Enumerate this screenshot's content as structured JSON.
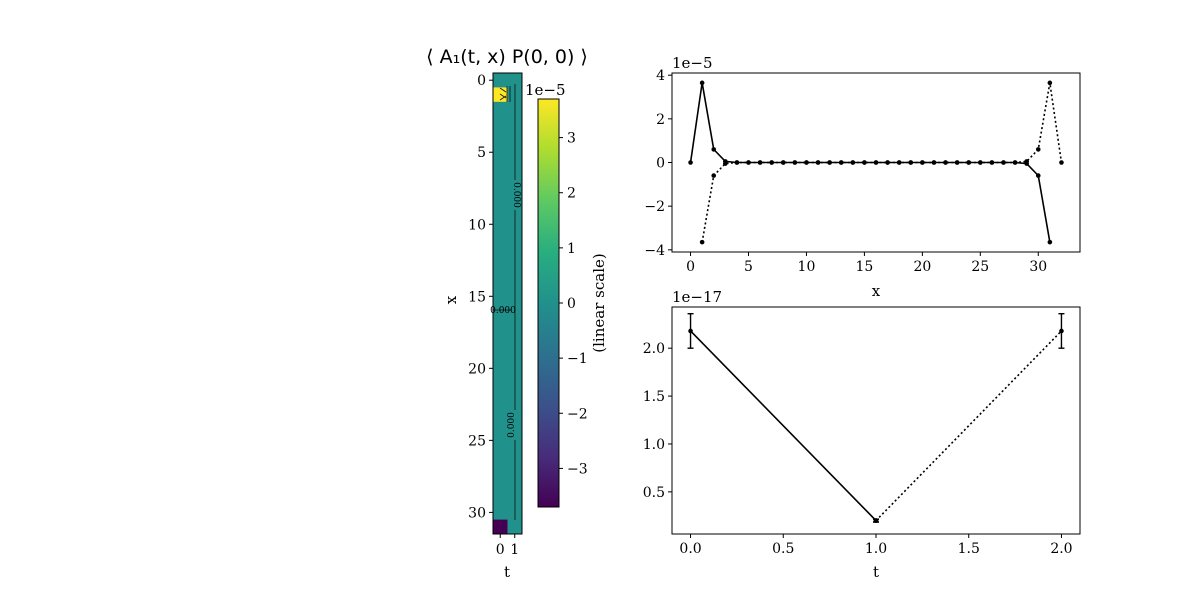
{
  "figure": {
    "heatmap": {
      "title": "⟨ A₁(t, x) P(0, 0) ⟩",
      "xlabel": "t",
      "ylabel": "x",
      "x_ticks": [
        "0",
        "1"
      ],
      "y_ticks": [
        "0",
        "5",
        "10",
        "15",
        "20",
        "25",
        "30"
      ],
      "contour_labels": [
        "0.000",
        "0.000",
        "0.000"
      ]
    },
    "colorbar": {
      "label": "(linear scale)",
      "exponent": "1e−5",
      "ticks": [
        "3",
        "2",
        "1",
        "0",
        "−1",
        "−2",
        "−3"
      ],
      "colormap": "viridis"
    },
    "top_panel": {
      "xlabel": "x",
      "exponent": "1e−5",
      "x_ticks": [
        "0",
        "5",
        "10",
        "15",
        "20",
        "25",
        "30"
      ],
      "y_ticks": [
        "4",
        "2",
        "0",
        "−2",
        "−4"
      ]
    },
    "bottom_panel": {
      "xlabel": "t",
      "exponent": "1e−17",
      "x_ticks": [
        "0.0",
        "0.5",
        "1.0",
        "1.5",
        "2.0"
      ],
      "y_ticks": [
        "2.0",
        "1.5",
        "1.0",
        "0.5"
      ]
    }
  },
  "chart_data": [
    {
      "type": "heatmap",
      "title": "⟨ A₁(t, x) P(0, 0) ⟩",
      "xlabel": "t",
      "ylabel": "x",
      "x": [
        0,
        1
      ],
      "y_range": [
        0,
        31
      ],
      "color_range": [
        -3.7e-05,
        3.7e-05
      ],
      "colormap": "viridis",
      "notable_values": [
        {
          "t": 0,
          "x": 1,
          "value": 3.7e-05
        },
        {
          "t": 0,
          "x": 31,
          "value": -3.7e-05
        }
      ],
      "background_value": 0
    },
    {
      "type": "line",
      "xlabel": "x",
      "ylabel": "",
      "y_scale": "1e-5",
      "xlim": [
        -1.6,
        33.6
      ],
      "ylim": [
        -4.1,
        4.1
      ],
      "series": [
        {
          "style": "solid",
          "x": [
            0,
            1,
            2,
            3,
            4,
            5,
            6,
            7,
            8,
            9,
            10,
            11,
            12,
            13,
            14,
            15,
            16,
            17,
            18,
            19,
            20,
            21,
            22,
            23,
            24,
            25,
            26,
            27,
            28,
            29,
            30,
            31
          ],
          "y": [
            0,
            3.65,
            0.6,
            0.05,
            0,
            0,
            0,
            0,
            0,
            0,
            0,
            0,
            0,
            0,
            0,
            0,
            0,
            0,
            0,
            0,
            0,
            0,
            0,
            0,
            0,
            0,
            0,
            0,
            0,
            -0.05,
            -0.6,
            -3.65
          ]
        },
        {
          "style": "dotted",
          "x": [
            1,
            2,
            3,
            4,
            5,
            6,
            7,
            8,
            9,
            10,
            11,
            12,
            13,
            14,
            15,
            16,
            17,
            18,
            19,
            20,
            21,
            22,
            23,
            24,
            25,
            26,
            27,
            28,
            29,
            30,
            31,
            32
          ],
          "y": [
            -3.65,
            -0.6,
            -0.05,
            0,
            0,
            0,
            0,
            0,
            0,
            0,
            0,
            0,
            0,
            0,
            0,
            0,
            0,
            0,
            0,
            0,
            0,
            0,
            0,
            0,
            0,
            0,
            0,
            0,
            0.05,
            0.6,
            3.65,
            0
          ]
        }
      ]
    },
    {
      "type": "line",
      "xlabel": "t",
      "ylabel": "",
      "y_scale": "1e-17",
      "xlim": [
        -0.1,
        2.1
      ],
      "ylim": [
        0.06,
        2.43
      ],
      "series": [
        {
          "style": "solid",
          "x": [
            0,
            1
          ],
          "y": [
            2.18,
            0.2
          ],
          "yerr": [
            0.18,
            0.015
          ]
        },
        {
          "style": "dotted",
          "x": [
            1,
            2
          ],
          "y": [
            0.2,
            2.18
          ],
          "yerr": [
            0.015,
            0.18
          ]
        }
      ]
    }
  ]
}
